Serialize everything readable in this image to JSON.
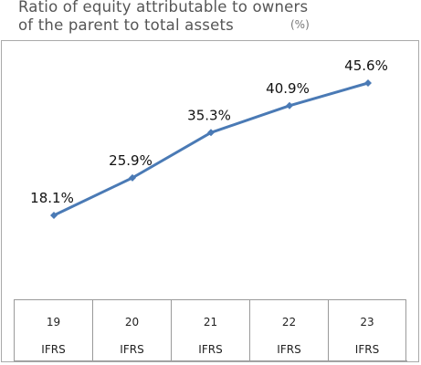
{
  "title_line1": "Ratio of equity attributable to owners",
  "title_line2": "of the parent to total assets",
  "unit": "(%)",
  "chart_data": {
    "type": "line",
    "categories": [
      "19",
      "20",
      "21",
      "22",
      "23"
    ],
    "sublabels": [
      "IFRS",
      "IFRS",
      "IFRS",
      "IFRS",
      "IFRS"
    ],
    "series": [
      {
        "values": [
          18.1,
          25.9,
          35.3,
          40.9,
          45.6
        ],
        "labels": [
          "18.1%",
          "25.9%",
          "35.3%",
          "40.9%",
          "45.6%"
        ],
        "color": "#4a7ab5"
      }
    ],
    "ylim": [
      0,
      50
    ],
    "grid": false,
    "legend": "none"
  }
}
